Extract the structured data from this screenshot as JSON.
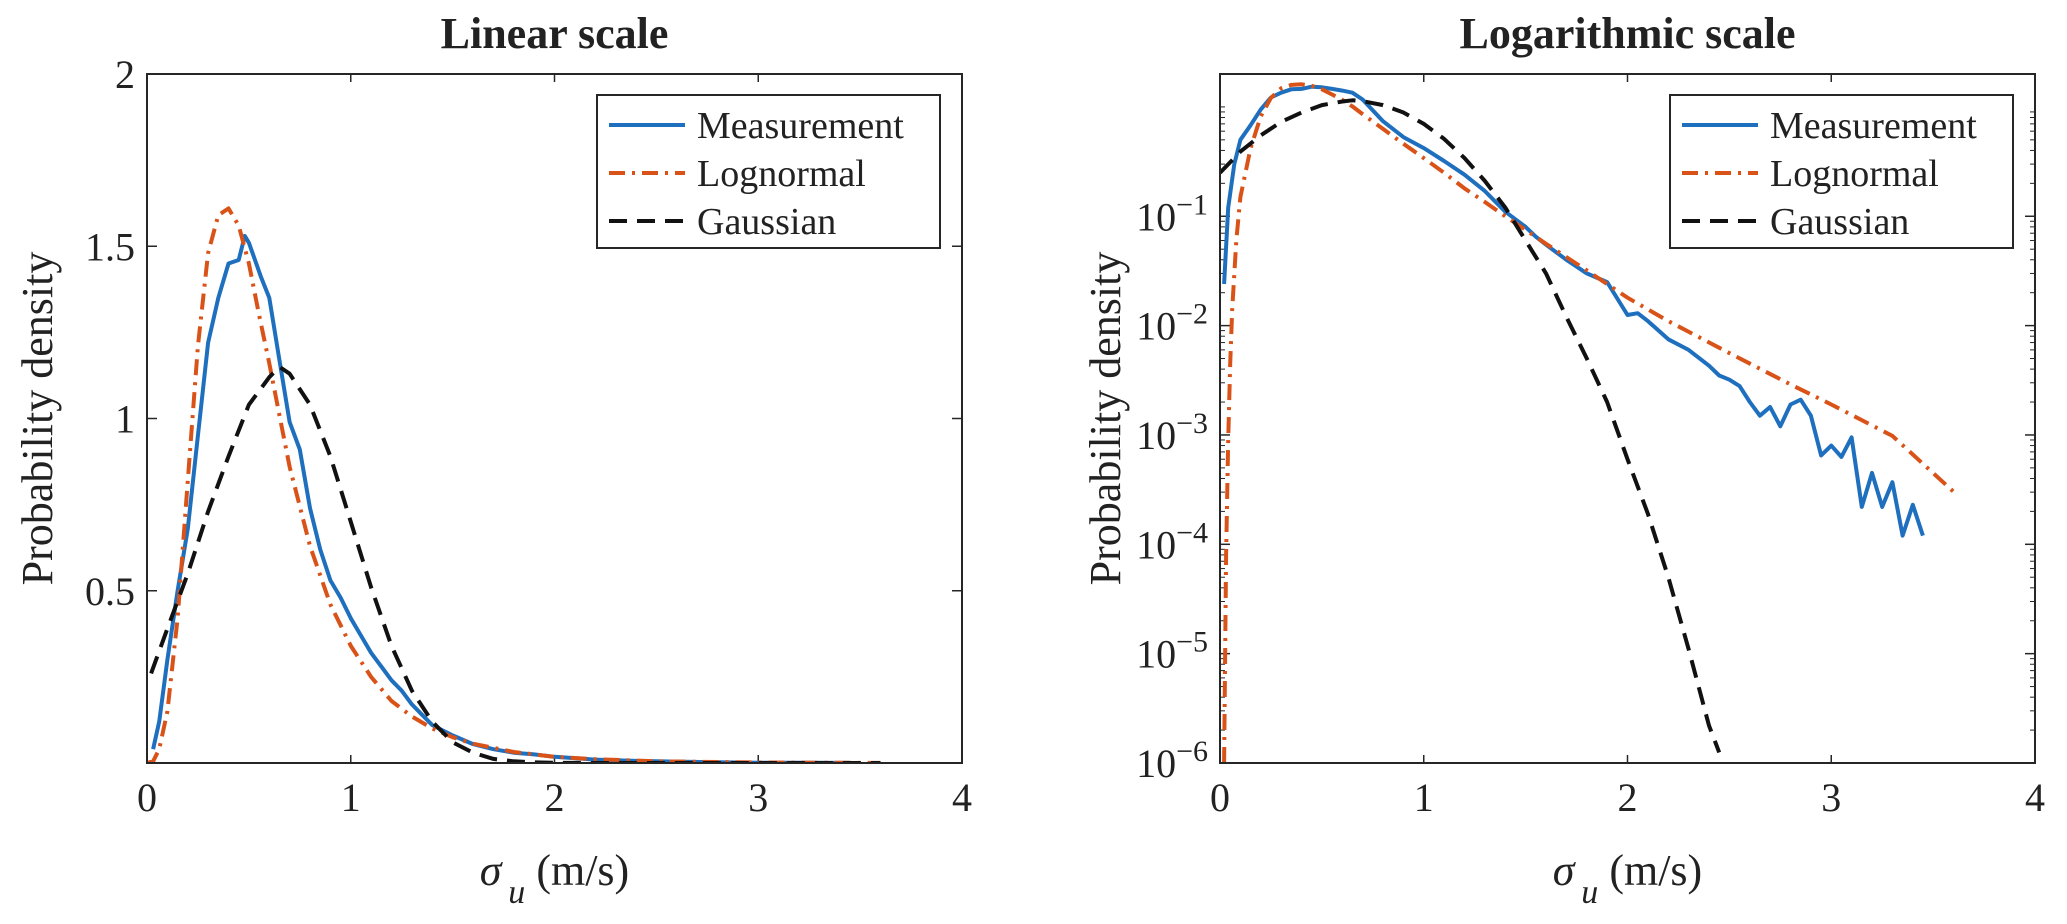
{
  "chart_data": [
    {
      "type": "line",
      "title": "Linear scale",
      "xlabel_symbol": "σ",
      "xlabel_subscript": "u",
      "xlabel_unit": "(m/s)",
      "ylabel": "Probability density",
      "xlim": [
        0,
        4
      ],
      "ylim": [
        0,
        2
      ],
      "yscale": "linear",
      "xticks": [
        0,
        1,
        2,
        3,
        4
      ],
      "xtick_labels": [
        "0",
        "1",
        "2",
        "3",
        "4"
      ],
      "yticks": [
        0.5,
        1,
        1.5,
        2
      ],
      "ytick_labels": [
        "0.5",
        "1",
        "1.5",
        "2"
      ],
      "legend_position": "top-right",
      "legend": [
        "Measurement",
        "Lognormal",
        "Gaussian"
      ],
      "series": [
        {
          "name": "Measurement",
          "color": "#1f6fbf",
          "dash": "solid",
          "x": [
            0.03,
            0.06,
            0.1,
            0.15,
            0.2,
            0.25,
            0.3,
            0.35,
            0.4,
            0.45,
            0.48,
            0.5,
            0.53,
            0.56,
            0.6,
            0.65,
            0.7,
            0.75,
            0.8,
            0.85,
            0.9,
            0.95,
            1.0,
            1.05,
            1.1,
            1.15,
            1.2,
            1.25,
            1.3,
            1.35,
            1.4,
            1.5,
            1.6,
            1.7,
            1.8,
            1.9,
            2.0,
            2.2,
            2.4,
            2.6,
            2.8,
            3.0,
            3.2,
            3.45
          ],
          "y": [
            0.04,
            0.12,
            0.3,
            0.5,
            0.68,
            0.95,
            1.22,
            1.35,
            1.45,
            1.46,
            1.53,
            1.51,
            1.46,
            1.41,
            1.35,
            1.17,
            0.99,
            0.91,
            0.74,
            0.62,
            0.53,
            0.48,
            0.42,
            0.37,
            0.32,
            0.28,
            0.24,
            0.21,
            0.17,
            0.14,
            0.11,
            0.08,
            0.055,
            0.04,
            0.03,
            0.025,
            0.018,
            0.01,
            0.006,
            0.004,
            0.002,
            0.001,
            0.0005,
            0.0002
          ]
        },
        {
          "name": "Lognormal",
          "color": "#d95319",
          "dash": "dashdot",
          "x": [
            0.0,
            0.03,
            0.06,
            0.1,
            0.15,
            0.2,
            0.25,
            0.3,
            0.35,
            0.4,
            0.45,
            0.5,
            0.55,
            0.6,
            0.65,
            0.7,
            0.8,
            0.9,
            1.0,
            1.1,
            1.2,
            1.3,
            1.4,
            1.5,
            1.6,
            1.8,
            2.0,
            2.2,
            2.5,
            3.0,
            3.6
          ],
          "y": [
            0.0,
            0.005,
            0.04,
            0.15,
            0.42,
            0.82,
            1.21,
            1.48,
            1.59,
            1.61,
            1.56,
            1.45,
            1.3,
            1.16,
            1.01,
            0.86,
            0.63,
            0.46,
            0.34,
            0.25,
            0.18,
            0.135,
            0.1,
            0.075,
            0.056,
            0.032,
            0.018,
            0.011,
            0.005,
            0.0015,
            0.0003
          ]
        },
        {
          "name": "Gaussian",
          "color": "#111111",
          "dash": "dashed",
          "x": [
            0.02,
            0.1,
            0.2,
            0.3,
            0.4,
            0.5,
            0.6,
            0.65,
            0.7,
            0.8,
            0.9,
            1.0,
            1.1,
            1.2,
            1.3,
            1.4,
            1.5,
            1.6,
            1.7,
            1.8,
            1.9,
            2.0,
            2.2,
            2.45,
            2.8,
            3.2,
            3.6
          ],
          "y": [
            0.26,
            0.39,
            0.55,
            0.73,
            0.89,
            1.04,
            1.12,
            1.15,
            1.13,
            1.04,
            0.89,
            0.7,
            0.51,
            0.34,
            0.21,
            0.12,
            0.06,
            0.03,
            0.012,
            0.005,
            0.002,
            0.0006,
            8e-05,
            1e-06,
            0.0,
            0.0,
            0.0
          ]
        }
      ]
    },
    {
      "type": "line",
      "title": "Logarithmic scale",
      "xlabel_symbol": "σ",
      "xlabel_subscript": "u",
      "xlabel_unit": "(m/s)",
      "ylabel": "Probability density",
      "xlim": [
        0,
        4
      ],
      "ylim": [
        1e-06,
        2
      ],
      "yscale": "log",
      "xticks": [
        0,
        1,
        2,
        3,
        4
      ],
      "xtick_labels": [
        "0",
        "1",
        "2",
        "3",
        "4"
      ],
      "yticks_exponents": [
        -6,
        -5,
        -4,
        -3,
        -2,
        -1
      ],
      "ytick_base": "10",
      "legend_position": "top-right",
      "legend": [
        "Measurement",
        "Lognormal",
        "Gaussian"
      ],
      "series": [
        {
          "name": "Measurement",
          "color": "#1f6fbf",
          "dash": "solid",
          "x": [
            0.02,
            0.04,
            0.07,
            0.1,
            0.15,
            0.2,
            0.25,
            0.3,
            0.35,
            0.4,
            0.45,
            0.5,
            0.55,
            0.6,
            0.65,
            0.7,
            0.8,
            0.9,
            1.0,
            1.1,
            1.2,
            1.3,
            1.4,
            1.5,
            1.55,
            1.6,
            1.7,
            1.8,
            1.9,
            2.0,
            2.05,
            2.1,
            2.2,
            2.3,
            2.4,
            2.45,
            2.5,
            2.55,
            2.6,
            2.65,
            2.7,
            2.75,
            2.8,
            2.85,
            2.9,
            2.95,
            3.0,
            3.05,
            3.1,
            3.15,
            3.2,
            3.25,
            3.3,
            3.35,
            3.4,
            3.45
          ],
          "y": [
            0.024,
            0.12,
            0.3,
            0.5,
            0.68,
            0.95,
            1.22,
            1.35,
            1.45,
            1.46,
            1.53,
            1.51,
            1.46,
            1.41,
            1.35,
            1.17,
            0.74,
            0.53,
            0.42,
            0.32,
            0.24,
            0.17,
            0.11,
            0.08,
            0.065,
            0.055,
            0.04,
            0.03,
            0.025,
            0.0125,
            0.013,
            0.011,
            0.0075,
            0.006,
            0.0043,
            0.0035,
            0.0032,
            0.0028,
            0.002,
            0.0015,
            0.0018,
            0.0012,
            0.0019,
            0.0021,
            0.0015,
            0.00065,
            0.0008,
            0.00063,
            0.00095,
            0.00022,
            0.00045,
            0.00022,
            0.00037,
            0.00012,
            0.00023,
            0.00012
          ]
        },
        {
          "name": "Lognormal",
          "color": "#d95319",
          "dash": "dashdot",
          "x": [
            0.02,
            0.03,
            0.04,
            0.05,
            0.06,
            0.08,
            0.1,
            0.15,
            0.2,
            0.25,
            0.3,
            0.35,
            0.4,
            0.45,
            0.5,
            0.55,
            0.6,
            0.65,
            0.7,
            0.8,
            0.9,
            1.0,
            1.1,
            1.2,
            1.3,
            1.4,
            1.5,
            1.6,
            1.8,
            2.0,
            2.2,
            2.5,
            2.8,
            3.0,
            3.3,
            3.62
          ],
          "y": [
            1e-06,
            8e-05,
            0.0009,
            0.0045,
            0.014,
            0.06,
            0.15,
            0.42,
            0.82,
            1.21,
            1.48,
            1.59,
            1.61,
            1.56,
            1.45,
            1.3,
            1.16,
            1.01,
            0.86,
            0.63,
            0.46,
            0.34,
            0.25,
            0.18,
            0.135,
            0.1,
            0.075,
            0.056,
            0.032,
            0.018,
            0.011,
            0.0056,
            0.0029,
            0.0019,
            0.00098,
            0.00028
          ]
        },
        {
          "name": "Gaussian",
          "color": "#111111",
          "dash": "dashed",
          "x": [
            0.0,
            0.1,
            0.2,
            0.3,
            0.4,
            0.5,
            0.6,
            0.65,
            0.7,
            0.8,
            0.9,
            1.0,
            1.1,
            1.2,
            1.3,
            1.4,
            1.5,
            1.6,
            1.7,
            1.8,
            1.9,
            2.0,
            2.1,
            2.2,
            2.3,
            2.4,
            2.45
          ],
          "y": [
            0.25,
            0.39,
            0.55,
            0.73,
            0.89,
            1.04,
            1.12,
            1.15,
            1.13,
            1.04,
            0.89,
            0.7,
            0.51,
            0.34,
            0.21,
            0.12,
            0.06,
            0.03,
            0.012,
            0.005,
            0.002,
            0.0006,
            0.00019,
            5e-05,
            1.1e-05,
            2.2e-06,
            1.25e-06
          ]
        }
      ]
    }
  ]
}
